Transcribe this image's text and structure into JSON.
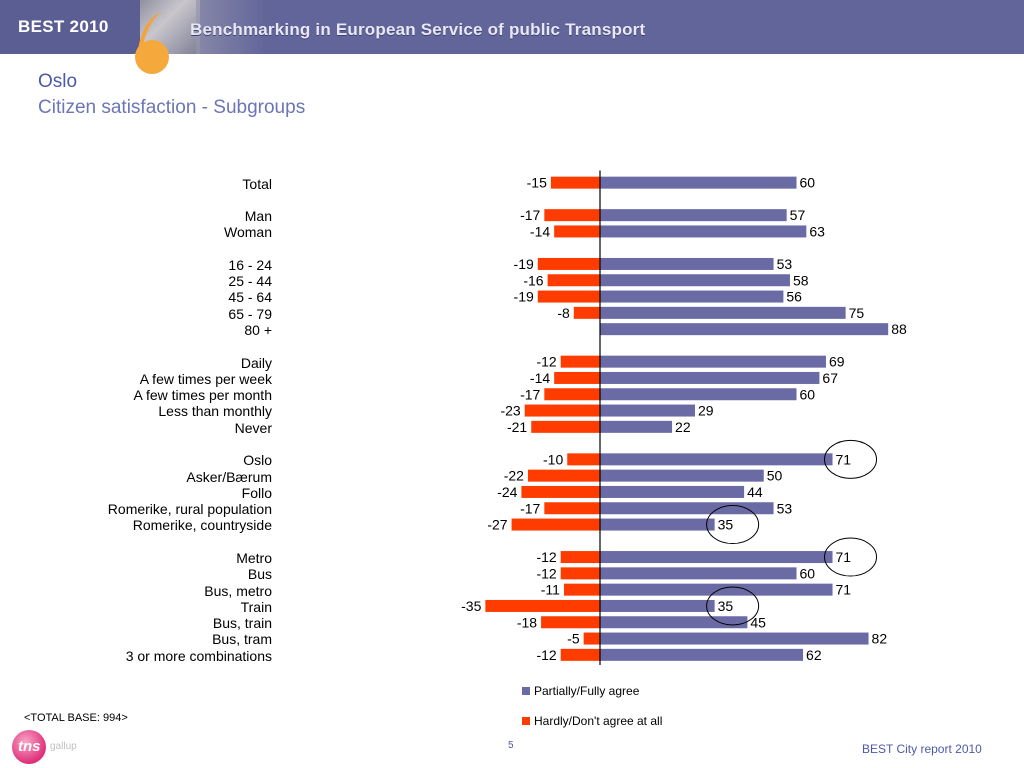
{
  "header": {
    "brand": "BEST 2010",
    "title": "Benchmarking in European Service of public Transport"
  },
  "page": {
    "city": "Oslo",
    "subtitle": "Citizen satisfaction - Subgroups"
  },
  "colors": {
    "agree": "#6a6aa5",
    "disagree": "#ff3c00",
    "banner": "#62659a",
    "title": "#4d59a8"
  },
  "chart_data": {
    "type": "bar",
    "orientation": "horizontal diverging",
    "categories": [
      "Total",
      "Man",
      "Woman",
      "16 - 24",
      "25 - 44",
      "45 - 64",
      "65 - 79",
      "80 +",
      "Daily",
      "A few times per week",
      "A few times per month",
      "Less than monthly",
      "Never",
      "Oslo",
      "Asker/Bærum",
      "Follo",
      "Romerike, rural population",
      "Romerike, countryside",
      "Metro",
      "Bus",
      "Bus, metro",
      "Train",
      "Bus, train",
      "Bus, tram",
      "3 or more combinations"
    ],
    "groups": [
      [
        0
      ],
      [
        1,
        2
      ],
      [
        3,
        4,
        5,
        6,
        7
      ],
      [
        8,
        9,
        10,
        11,
        12
      ],
      [
        13,
        14,
        15,
        16,
        17
      ],
      [
        18,
        19,
        20,
        21,
        22,
        23,
        24
      ]
    ],
    "series": [
      {
        "name": "Partially/Fully agree",
        "values": [
          60,
          57,
          63,
          53,
          58,
          56,
          75,
          88,
          69,
          67,
          60,
          29,
          22,
          71,
          50,
          44,
          53,
          35,
          71,
          60,
          71,
          35,
          45,
          82,
          62
        ]
      },
      {
        "name": "Hardly/Don't agree at all",
        "values": [
          -15,
          -17,
          -14,
          -19,
          -16,
          -19,
          -8,
          null,
          -12,
          -14,
          -17,
          -23,
          -21,
          -10,
          -22,
          -24,
          -17,
          -27,
          -12,
          -12,
          -11,
          -35,
          -18,
          -5,
          -12
        ]
      }
    ],
    "highlighted_values": [
      71,
      35,
      71,
      35
    ],
    "highlighted_categories": [
      13,
      17,
      18,
      21
    ],
    "legend_position": "bottom",
    "grid": false
  },
  "footer": {
    "base_note": "<TOTAL BASE: 994>",
    "logo_text": "tns",
    "logo_sub": "gallup",
    "page_number": "5",
    "report": "BEST City report 2010"
  }
}
